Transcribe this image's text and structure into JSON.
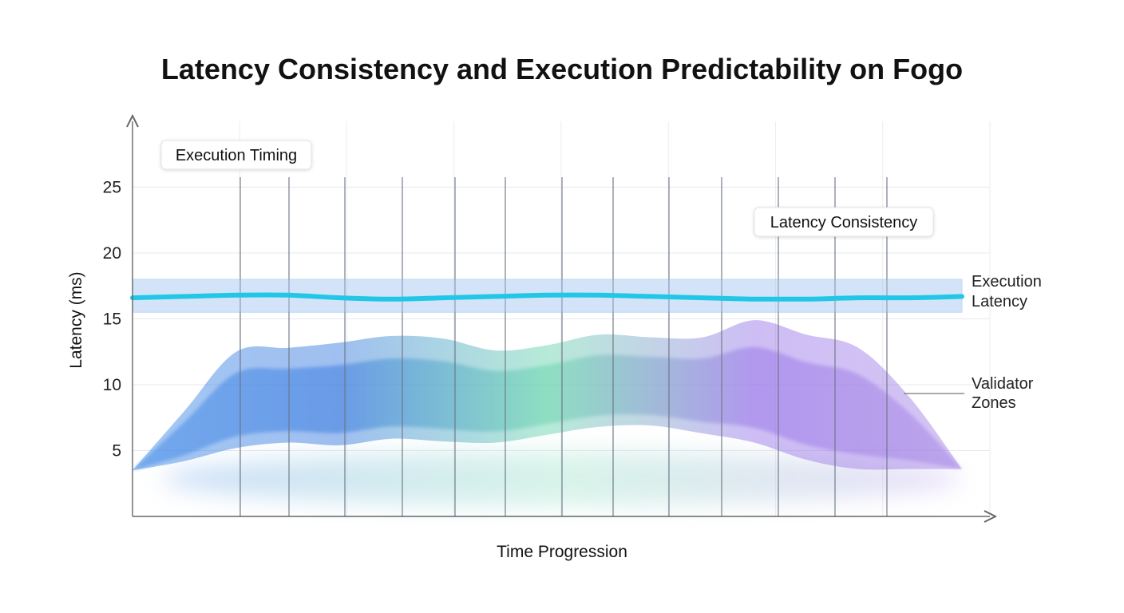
{
  "chart_data": {
    "type": "area",
    "title": "Latency Consistency and Execution Predictability on Fogo",
    "xlabel": "Time Progression",
    "ylabel": "Latency (ms)",
    "yticks": [
      5,
      10,
      15,
      20,
      25
    ],
    "ylim": [
      0,
      30
    ],
    "grid": true,
    "x": [
      0,
      1,
      2,
      3,
      4,
      5,
      6,
      7,
      8,
      9,
      10,
      11,
      12,
      13,
      14,
      15,
      16
    ],
    "series": [
      {
        "name": "Execution Latency",
        "type": "line",
        "color": "#22c6e6",
        "values": [
          16.6,
          16.7,
          16.8,
          16.8,
          16.6,
          16.5,
          16.6,
          16.7,
          16.8,
          16.8,
          16.7,
          16.6,
          16.5,
          16.5,
          16.6,
          16.6,
          16.7
        ],
        "band": [
          15.5,
          18.0
        ]
      },
      {
        "name": "Validator Zones",
        "type": "band",
        "upper": [
          3.5,
          8.0,
          12.5,
          12.8,
          13.2,
          13.7,
          13.5,
          12.6,
          13.0,
          13.8,
          13.6,
          13.6,
          14.9,
          13.8,
          12.8,
          9.0,
          3.6
        ],
        "lower": [
          3.5,
          4.2,
          5.2,
          5.6,
          5.4,
          5.9,
          5.7,
          5.6,
          6.2,
          6.8,
          6.9,
          6.3,
          5.6,
          4.3,
          3.6,
          3.6,
          3.6
        ],
        "colors": [
          "#4a90e8",
          "#3f7fe0",
          "#6ed6b0",
          "#9c7bea",
          "#a98ae6"
        ]
      }
    ],
    "annotations": [
      {
        "text": "Execution Timing",
        "target": "vertical-lines"
      },
      {
        "text": "Latency Consistency",
        "target": "Execution Latency"
      }
    ],
    "side_labels": {
      "execution": [
        "Execution",
        "Latency"
      ],
      "validator": [
        "Validator",
        "Zones"
      ]
    }
  }
}
